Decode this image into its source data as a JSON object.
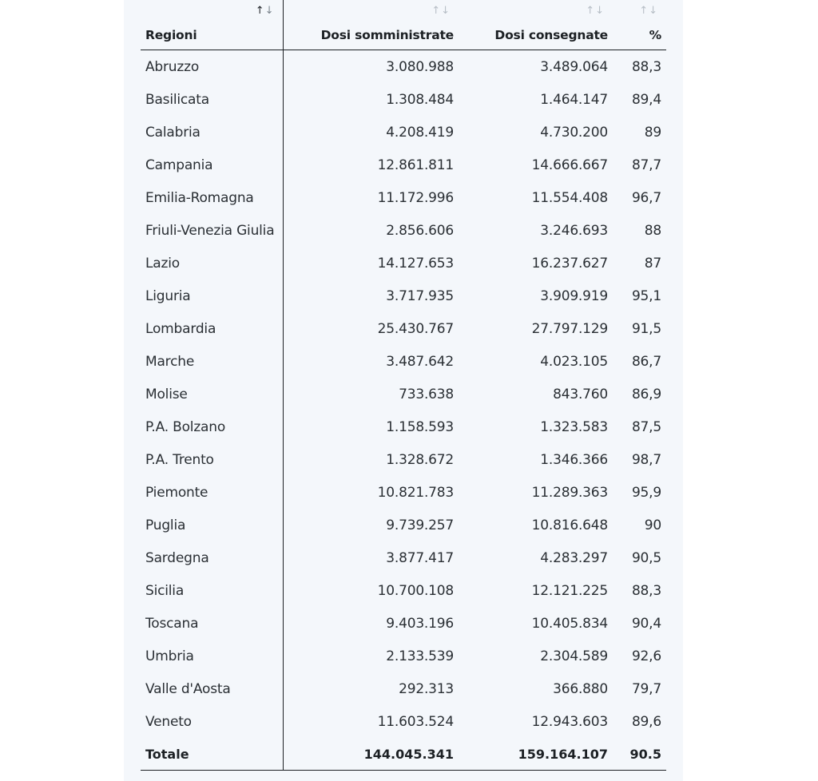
{
  "table": {
    "headers": {
      "region": "Regioni",
      "administered": "Dosi somministrate",
      "delivered": "Dosi consegnate",
      "percent": "%"
    },
    "sort_glyph_up": "↑",
    "sort_glyph_down": "↓",
    "rows": [
      {
        "region": "Abruzzo",
        "administered": "3.080.988",
        "delivered": "3.489.064",
        "percent": "88,3"
      },
      {
        "region": "Basilicata",
        "administered": "1.308.484",
        "delivered": "1.464.147",
        "percent": "89,4"
      },
      {
        "region": "Calabria",
        "administered": "4.208.419",
        "delivered": "4.730.200",
        "percent": "89"
      },
      {
        "region": "Campania",
        "administered": "12.861.811",
        "delivered": "14.666.667",
        "percent": "87,7"
      },
      {
        "region": "Emilia-Romagna",
        "administered": "11.172.996",
        "delivered": "11.554.408",
        "percent": "96,7"
      },
      {
        "region": "Friuli-Venezia Giulia",
        "administered": "2.856.606",
        "delivered": "3.246.693",
        "percent": "88"
      },
      {
        "region": "Lazio",
        "administered": "14.127.653",
        "delivered": "16.237.627",
        "percent": "87"
      },
      {
        "region": "Liguria",
        "administered": "3.717.935",
        "delivered": "3.909.919",
        "percent": "95,1"
      },
      {
        "region": "Lombardia",
        "administered": "25.430.767",
        "delivered": "27.797.129",
        "percent": "91,5"
      },
      {
        "region": "Marche",
        "administered": "3.487.642",
        "delivered": "4.023.105",
        "percent": "86,7"
      },
      {
        "region": "Molise",
        "administered": "733.638",
        "delivered": "843.760",
        "percent": "86,9"
      },
      {
        "region": "P.A. Bolzano",
        "administered": "1.158.593",
        "delivered": "1.323.583",
        "percent": "87,5"
      },
      {
        "region": "P.A. Trento",
        "administered": "1.328.672",
        "delivered": "1.346.366",
        "percent": "98,7"
      },
      {
        "region": "Piemonte",
        "administered": "10.821.783",
        "delivered": "11.289.363",
        "percent": "95,9"
      },
      {
        "region": "Puglia",
        "administered": "9.739.257",
        "delivered": "10.816.648",
        "percent": "90"
      },
      {
        "region": "Sardegna",
        "administered": "3.877.417",
        "delivered": "4.283.297",
        "percent": "90,5"
      },
      {
        "region": "Sicilia",
        "administered": "10.700.108",
        "delivered": "12.121.225",
        "percent": "88,3"
      },
      {
        "region": "Toscana",
        "administered": "9.403.196",
        "delivered": "10.405.834",
        "percent": "90,4"
      },
      {
        "region": "Umbria",
        "administered": "2.133.539",
        "delivered": "2.304.589",
        "percent": "92,6"
      },
      {
        "region": "Valle d'Aosta",
        "administered": "292.313",
        "delivered": "366.880",
        "percent": "79,7"
      },
      {
        "region": "Veneto",
        "administered": "11.603.524",
        "delivered": "12.943.603",
        "percent": "89,6"
      }
    ],
    "total": {
      "label": "Totale",
      "administered": "144.045.341",
      "delivered": "159.164.107",
      "percent": "90.5"
    }
  }
}
